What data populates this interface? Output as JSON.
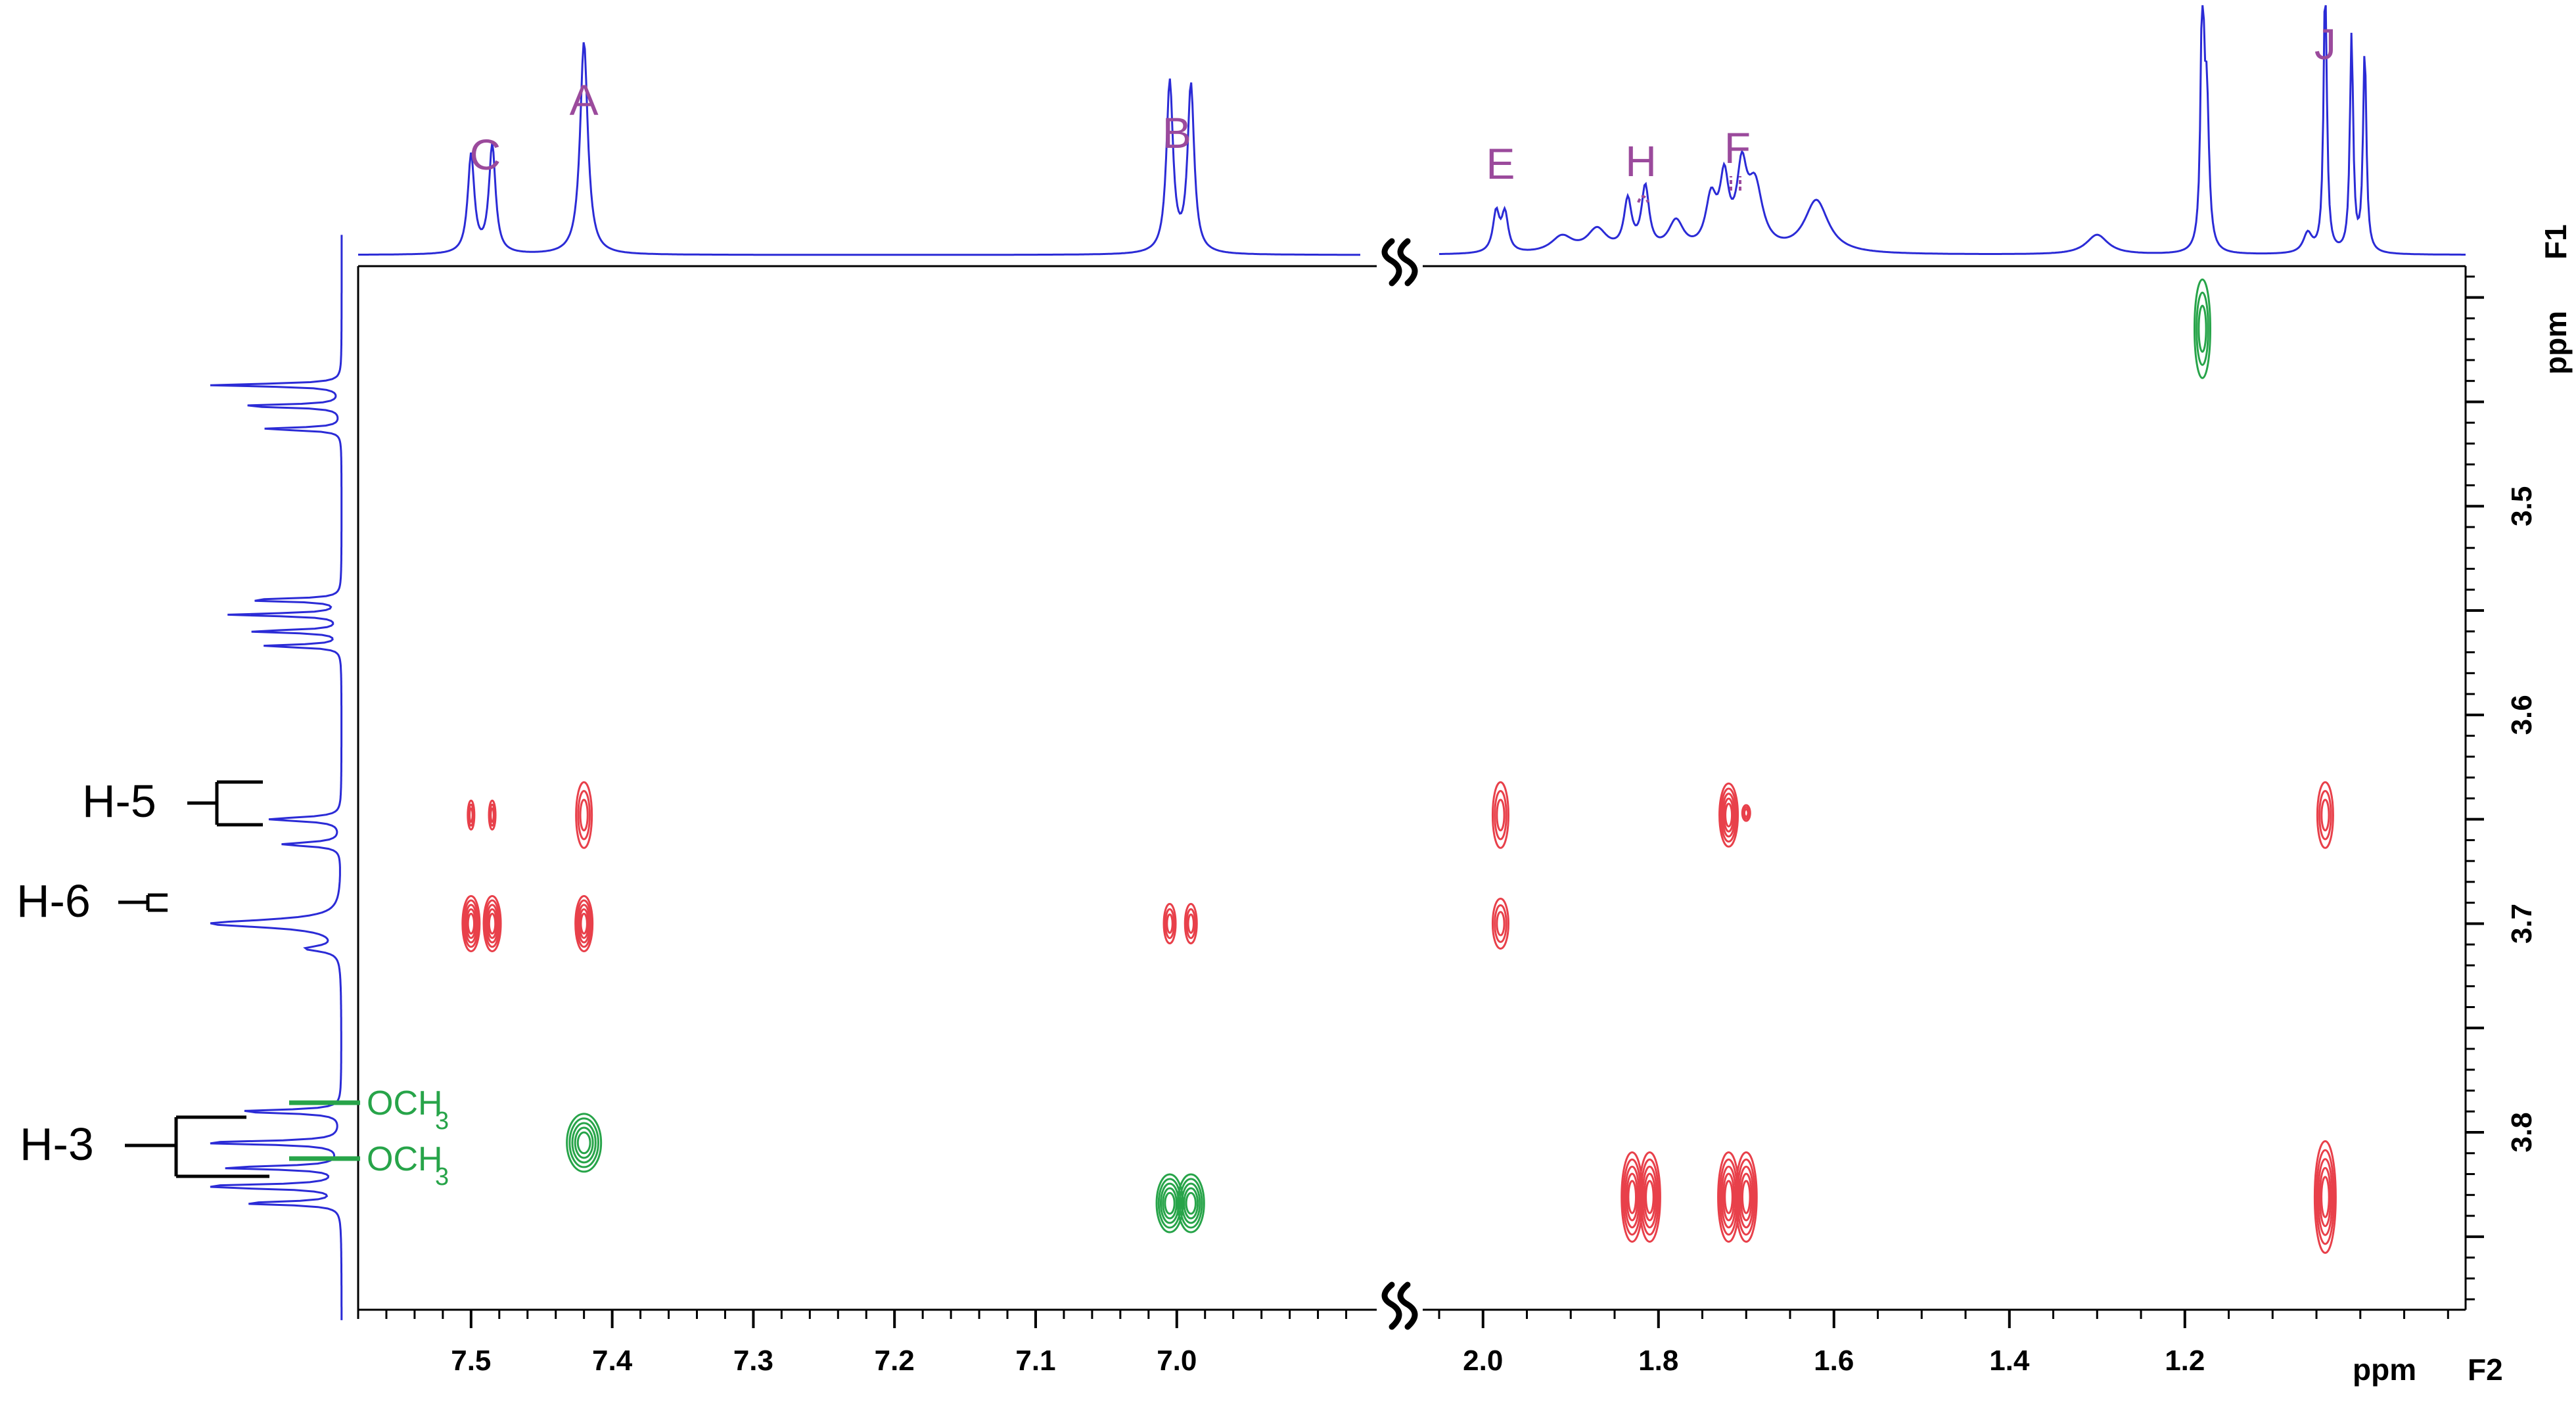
{
  "chart_data": {
    "type": "2D NMR contour plot",
    "x_axis": {
      "label": "ppm",
      "name": "F2",
      "segments": [
        {
          "range": [
            7.58,
            6.87
          ],
          "ticks": [
            "7.5",
            "7.4",
            "7.3",
            "7.2",
            "7.1",
            "7.0"
          ],
          "tick_values": [
            7.5,
            7.4,
            7.3,
            7.2,
            7.1,
            7.0
          ]
        },
        {
          "range": [
            2.05,
            0.88
          ],
          "ticks": [
            "2.0",
            "1.8",
            "1.6",
            "1.4",
            "1.2"
          ],
          "tick_values": [
            2.0,
            1.8,
            1.6,
            1.4,
            1.2
          ]
        }
      ],
      "broken": true
    },
    "y_axis": {
      "label": "ppm",
      "name": "F1",
      "range": [
        3.385,
        3.885
      ],
      "ticks": [
        "3.5",
        "3.6",
        "3.7",
        "3.8"
      ],
      "tick_values": [
        3.5,
        3.6,
        3.7,
        3.8
      ]
    },
    "top_spectrum_peaks": [
      {
        "label": "C",
        "ppm": 7.49
      },
      {
        "label": "A",
        "ppm": 7.42
      },
      {
        "label": "B",
        "ppm": 7.0
      },
      {
        "label": "E",
        "ppm": 1.98
      },
      {
        "label": "H",
        "ppm": 1.82
      },
      {
        "label": "F",
        "ppm": 1.71
      },
      {
        "label": "J",
        "ppm": 1.04
      }
    ],
    "side_spectrum_labels": [
      {
        "label": "H-5",
        "ppm": 3.654
      },
      {
        "label": "H-6",
        "ppm": 3.7
      },
      {
        "label": "H-3",
        "ppm": 3.822
      }
    ],
    "och3_labels": [
      {
        "text": "OCH",
        "sub": "3",
        "ppm": 3.805
      },
      {
        "text": "OCH",
        "sub": "3",
        "ppm": 3.834
      }
    ],
    "cross_peaks": [
      {
        "x": 1.18,
        "y": 3.415,
        "sign": "negative",
        "color": "#27a449"
      },
      {
        "x": 7.5,
        "y": 3.648,
        "sign": "positive",
        "color": "#e8404a"
      },
      {
        "x": 7.485,
        "y": 3.648,
        "sign": "positive",
        "color": "#e8404a"
      },
      {
        "x": 7.42,
        "y": 3.648,
        "sign": "positive",
        "color": "#e8404a"
      },
      {
        "x": 1.98,
        "y": 3.648,
        "sign": "positive",
        "color": "#e8404a"
      },
      {
        "x": 1.72,
        "y": 3.648,
        "sign": "positive",
        "color": "#e8404a"
      },
      {
        "x": 1.7,
        "y": 3.647,
        "sign": "positive",
        "color": "#e8404a"
      },
      {
        "x": 1.04,
        "y": 3.648,
        "sign": "positive",
        "color": "#e8404a"
      },
      {
        "x": 7.5,
        "y": 3.7,
        "sign": "positive",
        "color": "#e8404a"
      },
      {
        "x": 7.485,
        "y": 3.7,
        "sign": "positive",
        "color": "#e8404a"
      },
      {
        "x": 7.42,
        "y": 3.7,
        "sign": "positive",
        "color": "#e8404a"
      },
      {
        "x": 7.005,
        "y": 3.7,
        "sign": "positive",
        "color": "#e8404a"
      },
      {
        "x": 6.99,
        "y": 3.7,
        "sign": "positive",
        "color": "#e8404a"
      },
      {
        "x": 1.98,
        "y": 3.7,
        "sign": "positive",
        "color": "#e8404a"
      },
      {
        "x": 7.42,
        "y": 3.805,
        "sign": "negative",
        "color": "#27a449"
      },
      {
        "x": 7.005,
        "y": 3.834,
        "sign": "negative",
        "color": "#27a449"
      },
      {
        "x": 6.99,
        "y": 3.834,
        "sign": "negative",
        "color": "#27a449"
      },
      {
        "x": 1.83,
        "y": 3.831,
        "sign": "positive",
        "color": "#e8404a"
      },
      {
        "x": 1.81,
        "y": 3.831,
        "sign": "positive",
        "color": "#e8404a"
      },
      {
        "x": 1.72,
        "y": 3.831,
        "sign": "positive",
        "color": "#e8404a"
      },
      {
        "x": 1.7,
        "y": 3.831,
        "sign": "positive",
        "color": "#e8404a"
      },
      {
        "x": 1.04,
        "y": 3.831,
        "sign": "positive",
        "color": "#e8404a"
      }
    ],
    "colors": {
      "spectrum": "#2b2bd6",
      "positive_contour": "#e8404a",
      "negative_contour": "#27a449",
      "peak_labels": "#9b4a9c",
      "axis": "#000000"
    },
    "grid": false
  }
}
